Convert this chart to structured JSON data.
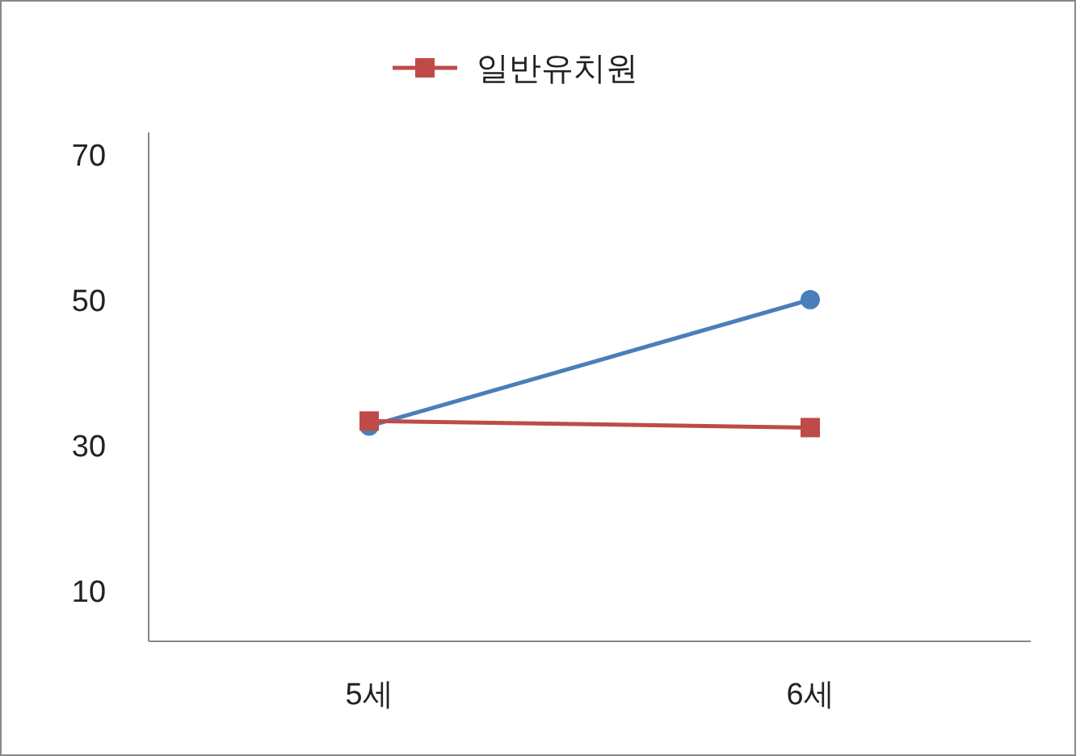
{
  "chart_data": {
    "type": "line",
    "categories": [
      "5세",
      "6세"
    ],
    "series": [
      {
        "color": "#4a7ebb",
        "marker": "circle",
        "values": [
          32.6,
          50
        ]
      },
      {
        "name": "일반유치원",
        "color": "#be4b48",
        "marker": "square",
        "values": [
          33.3,
          32.4
        ]
      }
    ],
    "ylim": [
      3,
      73
    ],
    "yticks": [
      10,
      30,
      50,
      70
    ],
    "grid": false,
    "legend": "top",
    "line_style": "solid"
  }
}
